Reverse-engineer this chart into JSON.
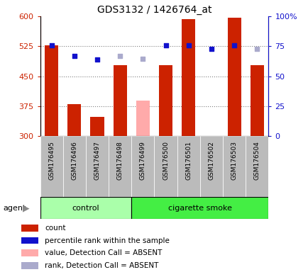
{
  "title": "GDS3132 / 1426764_at",
  "samples": [
    "GSM176495",
    "GSM176496",
    "GSM176497",
    "GSM176498",
    "GSM176499",
    "GSM176500",
    "GSM176501",
    "GSM176502",
    "GSM176503",
    "GSM176504"
  ],
  "count_values": [
    527,
    380,
    348,
    478,
    null,
    477,
    593,
    null,
    596,
    477
  ],
  "count_absent": [
    null,
    null,
    null,
    null,
    388,
    null,
    null,
    null,
    null,
    null
  ],
  "rank_values": [
    527,
    501,
    492,
    null,
    null,
    527,
    527,
    519,
    527,
    null
  ],
  "rank_absent": [
    null,
    null,
    null,
    500,
    493,
    null,
    null,
    null,
    null,
    519
  ],
  "groups": [
    "control",
    "control",
    "control",
    "control",
    "cigarette smoke",
    "cigarette smoke",
    "cigarette smoke",
    "cigarette smoke",
    "cigarette smoke",
    "cigarette smoke"
  ],
  "ylim_left": [
    300,
    600
  ],
  "ylim_right": [
    0,
    100
  ],
  "yticks_left": [
    300,
    375,
    450,
    525,
    600
  ],
  "yticks_right": [
    0,
    25,
    50,
    75,
    100
  ],
  "ytick_labels_left": [
    "300",
    "375",
    "450",
    "525",
    "600"
  ],
  "ytick_labels_right": [
    "0",
    "25",
    "50",
    "75",
    "100%"
  ],
  "hlines": [
    375,
    450,
    525
  ],
  "bar_width": 0.6,
  "bar_color_present": "#cc2200",
  "bar_color_absent": "#ffaaaa",
  "dot_color_present": "#1111cc",
  "dot_color_absent": "#aaaacc",
  "left_axis_color": "#cc2200",
  "right_axis_color": "#1111cc",
  "control_color": "#aaffaa",
  "smoke_color": "#44ee44",
  "agent_label": "agent",
  "background_color": "#ffffff",
  "tick_label_color_left": "#cc2200",
  "tick_label_color_right": "#1111cc",
  "xtick_bg_color": "#bbbbbb",
  "legend_items": [
    {
      "color": "#cc2200",
      "label": "count"
    },
    {
      "color": "#1111cc",
      "label": "percentile rank within the sample"
    },
    {
      "color": "#ffaaaa",
      "label": "value, Detection Call = ABSENT"
    },
    {
      "color": "#aaaacc",
      "label": "rank, Detection Call = ABSENT"
    }
  ]
}
